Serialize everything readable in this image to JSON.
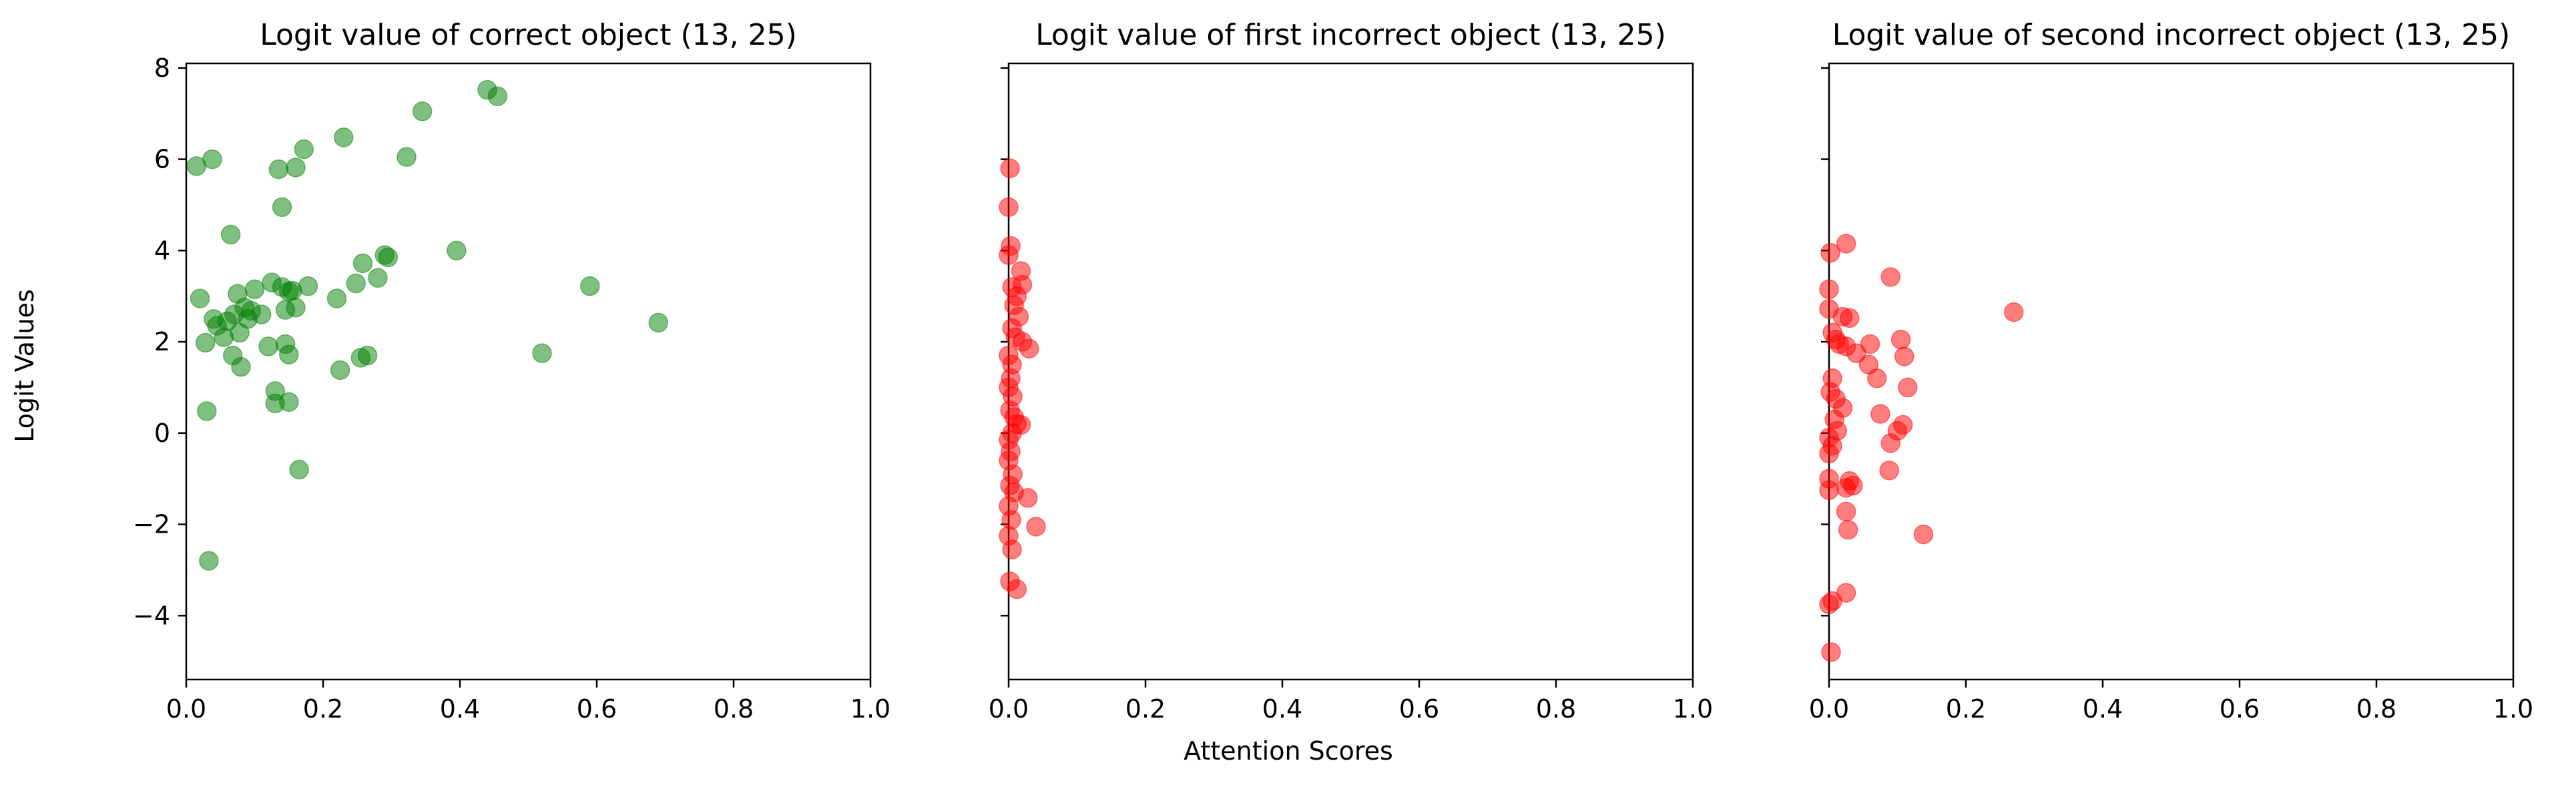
{
  "figure": {
    "ylabel": "Logit Values",
    "xlabel": "Attention Scores"
  },
  "chart_data": [
    {
      "type": "scatter",
      "title": "Logit value of correct object (13, 25)",
      "xlim": [
        0.0,
        1.0
      ],
      "ylim": [
        -5.4,
        8.1
      ],
      "xticks": [
        0.0,
        0.2,
        0.4,
        0.6,
        0.8,
        1.0
      ],
      "xtick_labels": [
        "0.0",
        "0.2",
        "0.4",
        "0.6",
        "0.8",
        "1.0"
      ],
      "yticks": [
        -4,
        -2,
        0,
        2,
        4,
        6,
        8
      ],
      "ytick_labels": [
        "−4",
        "−2",
        "0",
        "2",
        "4",
        "6",
        "8"
      ],
      "show_ytick_labels": true,
      "grid": false,
      "color": "#008000",
      "points": [
        [
          0.015,
          5.85
        ],
        [
          0.038,
          6.0
        ],
        [
          0.02,
          2.95
        ],
        [
          0.03,
          0.48
        ],
        [
          0.033,
          -2.8
        ],
        [
          0.028,
          1.98
        ],
        [
          0.04,
          2.5
        ],
        [
          0.045,
          2.35
        ],
        [
          0.055,
          2.1
        ],
        [
          0.06,
          2.45
        ],
        [
          0.065,
          4.35
        ],
        [
          0.068,
          1.7
        ],
        [
          0.07,
          2.6
        ],
        [
          0.075,
          3.05
        ],
        [
          0.078,
          2.2
        ],
        [
          0.08,
          1.45
        ],
        [
          0.085,
          2.75
        ],
        [
          0.09,
          2.5
        ],
        [
          0.095,
          2.68
        ],
        [
          0.1,
          3.15
        ],
        [
          0.11,
          2.6
        ],
        [
          0.12,
          1.9
        ],
        [
          0.125,
          3.3
        ],
        [
          0.13,
          0.92
        ],
        [
          0.13,
          0.65
        ],
        [
          0.135,
          5.78
        ],
        [
          0.14,
          4.95
        ],
        [
          0.14,
          3.2
        ],
        [
          0.145,
          1.95
        ],
        [
          0.145,
          2.7
        ],
        [
          0.15,
          1.72
        ],
        [
          0.15,
          3.1
        ],
        [
          0.15,
          0.68
        ],
        [
          0.155,
          3.12
        ],
        [
          0.16,
          5.82
        ],
        [
          0.16,
          2.75
        ],
        [
          0.165,
          -0.8
        ],
        [
          0.172,
          6.22
        ],
        [
          0.178,
          3.22
        ],
        [
          0.22,
          2.95
        ],
        [
          0.225,
          1.38
        ],
        [
          0.23,
          6.48
        ],
        [
          0.248,
          3.28
        ],
        [
          0.255,
          1.65
        ],
        [
          0.258,
          3.72
        ],
        [
          0.265,
          1.7
        ],
        [
          0.28,
          3.4
        ],
        [
          0.29,
          3.9
        ],
        [
          0.295,
          3.85
        ],
        [
          0.322,
          6.05
        ],
        [
          0.345,
          7.05
        ],
        [
          0.395,
          4.0
        ],
        [
          0.44,
          7.52
        ],
        [
          0.455,
          7.38
        ],
        [
          0.52,
          1.75
        ],
        [
          0.59,
          3.22
        ],
        [
          0.69,
          2.42
        ]
      ]
    },
    {
      "type": "scatter",
      "title": "Logit value of first incorrect object (13, 25)",
      "xlim": [
        0.0,
        1.0
      ],
      "ylim": [
        -5.4,
        8.1
      ],
      "xticks": [
        0.0,
        0.2,
        0.4,
        0.6,
        0.8,
        1.0
      ],
      "xtick_labels": [
        "0.0",
        "0.2",
        "0.4",
        "0.6",
        "0.8",
        "1.0"
      ],
      "yticks": [
        -4,
        -2,
        0,
        2,
        4,
        6,
        8
      ],
      "ytick_labels": [
        "",
        "",
        "",
        "",
        "",
        "",
        ""
      ],
      "show_ytick_labels": false,
      "grid": false,
      "color": "#ff0000",
      "points": [
        [
          0.002,
          5.8
        ],
        [
          0.0,
          4.95
        ],
        [
          0.003,
          4.1
        ],
        [
          0.0,
          3.9
        ],
        [
          0.005,
          3.2
        ],
        [
          0.018,
          3.55
        ],
        [
          0.02,
          3.25
        ],
        [
          0.012,
          3.0
        ],
        [
          0.008,
          2.8
        ],
        [
          0.015,
          2.55
        ],
        [
          0.005,
          2.3
        ],
        [
          0.01,
          2.1
        ],
        [
          0.02,
          2.0
        ],
        [
          0.03,
          1.85
        ],
        [
          0.0,
          1.7
        ],
        [
          0.005,
          1.5
        ],
        [
          0.003,
          1.2
        ],
        [
          0.0,
          1.0
        ],
        [
          0.006,
          0.8
        ],
        [
          0.002,
          0.5
        ],
        [
          0.008,
          0.35
        ],
        [
          0.012,
          0.2
        ],
        [
          0.018,
          0.18
        ],
        [
          0.005,
          0.0
        ],
        [
          0.0,
          -0.15
        ],
        [
          0.003,
          -0.4
        ],
        [
          0.0,
          -0.6
        ],
        [
          0.006,
          -0.9
        ],
        [
          0.002,
          -1.15
        ],
        [
          0.008,
          -1.3
        ],
        [
          0.028,
          -1.42
        ],
        [
          0.0,
          -1.6
        ],
        [
          0.004,
          -1.9
        ],
        [
          0.04,
          -2.05
        ],
        [
          0.0,
          -2.25
        ],
        [
          0.005,
          -2.55
        ],
        [
          0.002,
          -3.25
        ],
        [
          0.012,
          -3.42
        ]
      ]
    },
    {
      "type": "scatter",
      "title": "Logit value of second incorrect object (13, 25)",
      "xlim": [
        0.0,
        1.0
      ],
      "ylim": [
        -5.4,
        8.1
      ],
      "xticks": [
        0.0,
        0.2,
        0.4,
        0.6,
        0.8,
        1.0
      ],
      "xtick_labels": [
        "0.0",
        "0.2",
        "0.4",
        "0.6",
        "0.8",
        "1.0"
      ],
      "yticks": [
        -4,
        -2,
        0,
        2,
        4,
        6,
        8
      ],
      "ytick_labels": [
        "",
        "",
        "",
        "",
        "",
        "",
        ""
      ],
      "show_ytick_labels": false,
      "grid": false,
      "color": "#ff0000",
      "points": [
        [
          0.002,
          3.95
        ],
        [
          0.025,
          4.15
        ],
        [
          0.0,
          3.15
        ],
        [
          0.09,
          3.42
        ],
        [
          0.0,
          2.72
        ],
        [
          0.02,
          2.55
        ],
        [
          0.03,
          2.52
        ],
        [
          0.27,
          2.65
        ],
        [
          0.005,
          2.2
        ],
        [
          0.01,
          2.05
        ],
        [
          0.015,
          1.95
        ],
        [
          0.025,
          1.9
        ],
        [
          0.04,
          1.75
        ],
        [
          0.06,
          1.95
        ],
        [
          0.058,
          1.5
        ],
        [
          0.105,
          2.05
        ],
        [
          0.11,
          1.68
        ],
        [
          0.07,
          1.2
        ],
        [
          0.115,
          1.0
        ],
        [
          0.005,
          1.2
        ],
        [
          0.002,
          0.9
        ],
        [
          0.01,
          0.75
        ],
        [
          0.02,
          0.55
        ],
        [
          0.075,
          0.42
        ],
        [
          0.008,
          0.3
        ],
        [
          0.108,
          0.18
        ],
        [
          0.1,
          0.05
        ],
        [
          0.012,
          0.05
        ],
        [
          0.0,
          -0.1
        ],
        [
          0.09,
          -0.22
        ],
        [
          0.005,
          -0.28
        ],
        [
          0.0,
          -0.45
        ],
        [
          0.088,
          -0.82
        ],
        [
          0.0,
          -1.0
        ],
        [
          0.03,
          -1.05
        ],
        [
          0.035,
          -1.15
        ],
        [
          0.025,
          -1.2
        ],
        [
          0.0,
          -1.25
        ],
        [
          0.025,
          -1.72
        ],
        [
          0.028,
          -2.12
        ],
        [
          0.138,
          -2.22
        ],
        [
          0.025,
          -3.5
        ],
        [
          0.005,
          -3.68
        ],
        [
          0.0,
          -3.75
        ],
        [
          0.003,
          -4.8
        ]
      ]
    }
  ]
}
